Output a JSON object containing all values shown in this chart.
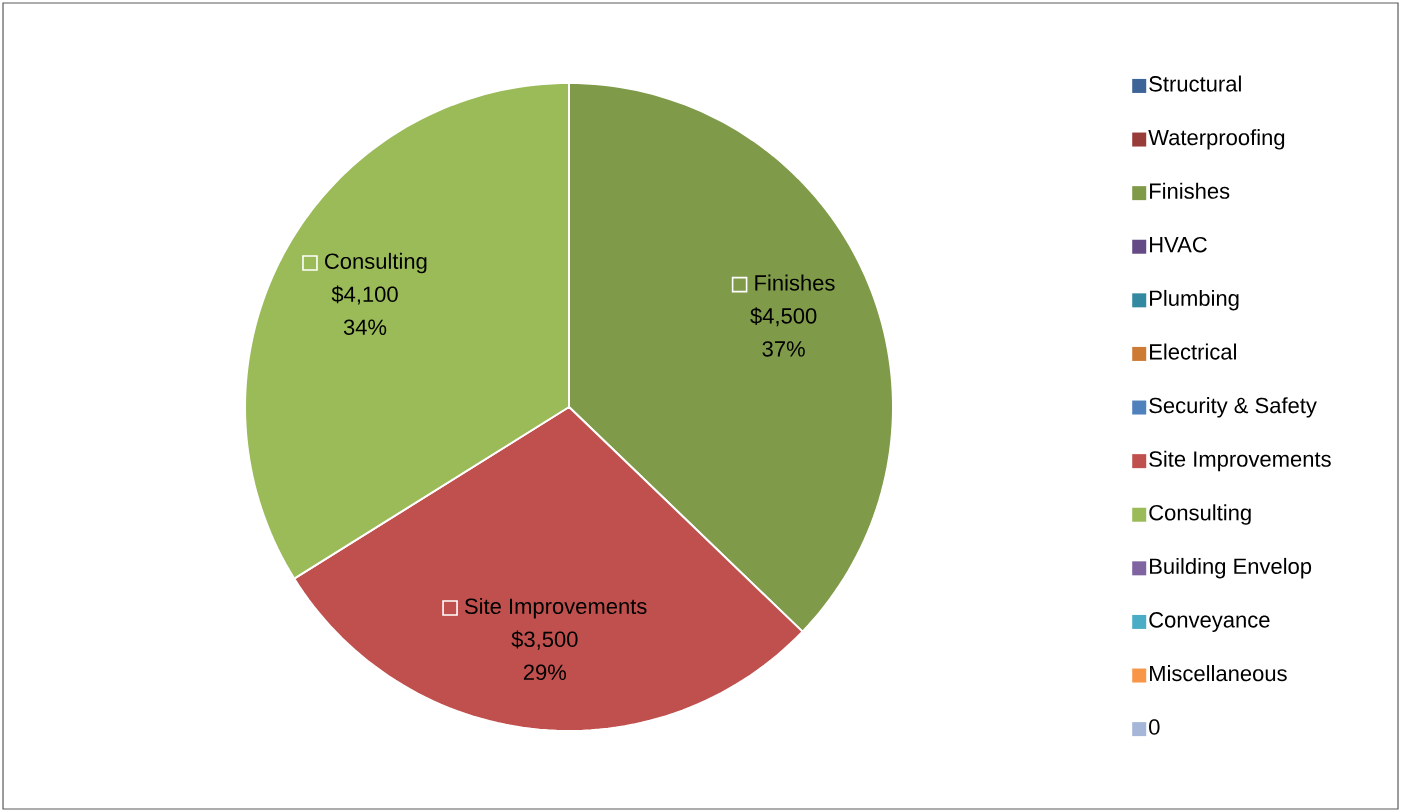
{
  "chart_data": {
    "type": "pie",
    "categories": [
      "Structural",
      "Waterproofing",
      "Finishes",
      "HVAC",
      "Plumbing",
      "Electrical",
      "Security & Safety",
      "Site Improvements",
      "Consulting",
      "Building Envelop",
      "Conveyance",
      "Miscellaneous",
      "0"
    ],
    "values": [
      0,
      0,
      4500,
      0,
      0,
      0,
      0,
      3500,
      4100,
      0,
      0,
      0,
      0
    ],
    "colors": [
      "#3c6496",
      "#983c3a",
      "#7f9a48",
      "#654b86",
      "#33899f",
      "#cd7a34",
      "#4f81bd",
      "#c0504d",
      "#9bbb59",
      "#8064a2",
      "#4bacc6",
      "#f79646",
      "#a5b6d9"
    ],
    "value_labels": [
      null,
      null,
      "$4,500",
      null,
      null,
      null,
      null,
      "$3,500",
      "$4,100",
      null,
      null,
      null,
      null
    ],
    "annotations": [
      "37%",
      "29%",
      "34%"
    ],
    "legend": "right"
  }
}
